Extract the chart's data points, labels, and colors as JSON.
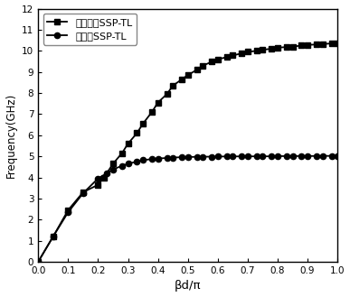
{
  "title": "",
  "xlabel": "βd/π",
  "ylabel": "Frequency(GHz)",
  "xlim": [
    0.0,
    1.0
  ],
  "ylim": [
    0,
    12
  ],
  "yticks": [
    0,
    1,
    2,
    3,
    4,
    5,
    6,
    7,
    8,
    9,
    10,
    11,
    12
  ],
  "ytick_labels": [
    "0",
    "1",
    "2",
    "3",
    "4",
    "5",
    "6",
    "7",
    "8",
    "9",
    "10",
    "11",
    "12"
  ],
  "xticks": [
    0.0,
    0.1,
    0.2,
    0.3,
    0.4,
    0.5,
    0.6,
    0.7,
    0.8,
    0.9,
    1.0
  ],
  "xtick_labels": [
    "0.0",
    "0.1",
    "0.2",
    "0.3",
    "0.4",
    "0.5",
    "0.6",
    "0.7",
    "0.8",
    "0.9",
    "1.0"
  ],
  "legend1": "普通单元SSP-TL",
  "legend2": "本发明SSP-TL",
  "line1_x": [
    0.0,
    0.05,
    0.1,
    0.15,
    0.2,
    0.22,
    0.25,
    0.28,
    0.3,
    0.33,
    0.35,
    0.38,
    0.4,
    0.43,
    0.45,
    0.48,
    0.5,
    0.53,
    0.55,
    0.58,
    0.6,
    0.63,
    0.65,
    0.68,
    0.7,
    0.73,
    0.75,
    0.78,
    0.8,
    0.83,
    0.85,
    0.88,
    0.9,
    0.93,
    0.95,
    0.98,
    1.0
  ],
  "line1_y": [
    0.0,
    1.2,
    2.45,
    3.3,
    3.65,
    4.0,
    4.65,
    5.15,
    5.6,
    6.1,
    6.55,
    7.1,
    7.55,
    7.95,
    8.35,
    8.65,
    8.85,
    9.1,
    9.3,
    9.48,
    9.6,
    9.7,
    9.78,
    9.88,
    9.95,
    10.0,
    10.05,
    10.1,
    10.15,
    10.18,
    10.2,
    10.25,
    10.28,
    10.3,
    10.32,
    10.35,
    10.35
  ],
  "line2_x": [
    0.0,
    0.05,
    0.1,
    0.15,
    0.2,
    0.23,
    0.25,
    0.28,
    0.3,
    0.33,
    0.35,
    0.38,
    0.4,
    0.43,
    0.45,
    0.48,
    0.5,
    0.53,
    0.55,
    0.58,
    0.6,
    0.63,
    0.65,
    0.68,
    0.7,
    0.73,
    0.75,
    0.78,
    0.8,
    0.83,
    0.85,
    0.88,
    0.9,
    0.93,
    0.95,
    0.98,
    1.0
  ],
  "line2_y": [
    0.0,
    1.2,
    2.35,
    3.25,
    3.95,
    4.2,
    4.38,
    4.55,
    4.65,
    4.75,
    4.82,
    4.87,
    4.9,
    4.92,
    4.94,
    4.96,
    4.97,
    4.975,
    4.98,
    4.985,
    4.99,
    4.993,
    4.995,
    4.997,
    4.998,
    4.999,
    5.0,
    5.0,
    5.01,
    5.01,
    5.01,
    5.015,
    5.015,
    5.015,
    5.02,
    5.02,
    5.02
  ],
  "line_color": "#000000",
  "marker1": "s",
  "marker2": "o",
  "marker_size": 4.5,
  "line_width": 1.3,
  "bg_color": "#ffffff"
}
